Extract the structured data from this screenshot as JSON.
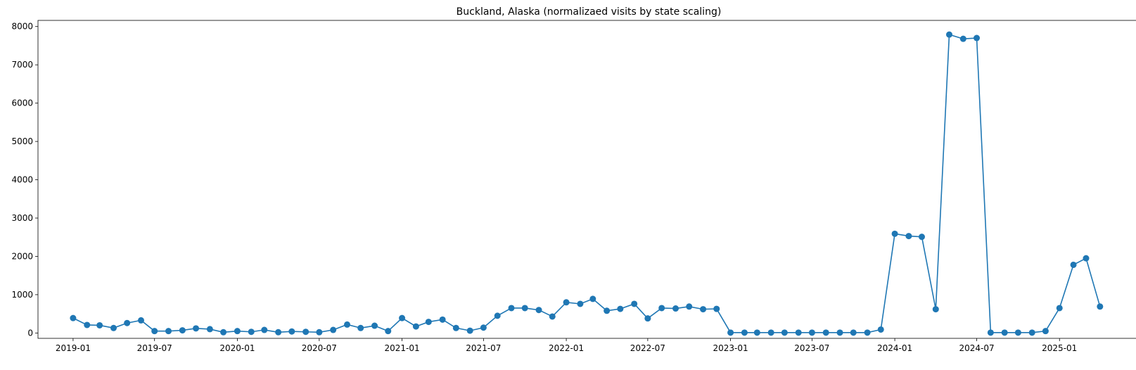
{
  "chart_data": {
    "type": "line",
    "title": "Buckland, Alaska (normalizaed visits by state scaling)",
    "xlabel": "",
    "ylabel": "",
    "color": "#1f77b4",
    "marker": "circle",
    "grid": false,
    "legend": false,
    "xlim": [
      "2018-10-15",
      "2025-06-20"
    ],
    "ylim": [
      -140,
      8160
    ],
    "x_ticks": [
      "2019-01",
      "2019-07",
      "2020-01",
      "2020-07",
      "2021-01",
      "2021-07",
      "2022-01",
      "2022-07",
      "2023-01",
      "2023-07",
      "2024-01",
      "2024-07",
      "2025-01"
    ],
    "y_ticks": [
      0,
      1000,
      2000,
      3000,
      4000,
      5000,
      6000,
      7000,
      8000
    ],
    "series": [
      {
        "x": [
          "2019-01",
          "2019-02",
          "2019-03",
          "2019-04",
          "2019-05",
          "2019-06",
          "2019-07",
          "2019-08",
          "2019-09",
          "2019-10",
          "2019-11",
          "2019-12",
          "2020-01",
          "2020-02",
          "2020-03",
          "2020-04",
          "2020-05",
          "2020-06",
          "2020-07",
          "2020-08",
          "2020-09",
          "2020-10",
          "2020-11",
          "2020-12",
          "2021-01",
          "2021-02",
          "2021-03",
          "2021-04",
          "2021-05",
          "2021-06",
          "2021-07",
          "2021-08",
          "2021-09",
          "2021-10",
          "2021-11",
          "2021-12",
          "2022-01",
          "2022-02",
          "2022-03",
          "2022-04",
          "2022-05",
          "2022-06",
          "2022-07",
          "2022-08",
          "2022-09",
          "2022-10",
          "2022-11",
          "2022-12",
          "2023-01",
          "2023-02",
          "2023-03",
          "2023-04",
          "2023-05",
          "2023-06",
          "2023-07",
          "2023-08",
          "2023-09",
          "2023-10",
          "2023-11",
          "2023-12",
          "2024-01",
          "2024-02",
          "2024-03",
          "2024-04",
          "2024-05",
          "2024-06",
          "2024-07",
          "2024-08",
          "2024-09",
          "2024-10",
          "2024-11",
          "2024-12",
          "2025-01",
          "2025-02",
          "2025-03",
          "2025-04"
        ],
        "y": [
          390,
          210,
          200,
          130,
          260,
          330,
          50,
          50,
          70,
          120,
          100,
          20,
          50,
          30,
          80,
          20,
          40,
          30,
          20,
          80,
          220,
          130,
          190,
          50,
          390,
          170,
          290,
          350,
          130,
          60,
          140,
          450,
          650,
          650,
          600,
          430,
          800,
          760,
          890,
          580,
          630,
          760,
          380,
          650,
          640,
          690,
          620,
          630,
          10,
          10,
          10,
          10,
          10,
          10,
          10,
          10,
          10,
          10,
          10,
          90,
          2590,
          2530,
          2510,
          620,
          7790,
          7680,
          7700,
          10,
          10,
          10,
          10,
          50,
          650,
          1780,
          1950,
          690
        ]
      }
    ]
  }
}
